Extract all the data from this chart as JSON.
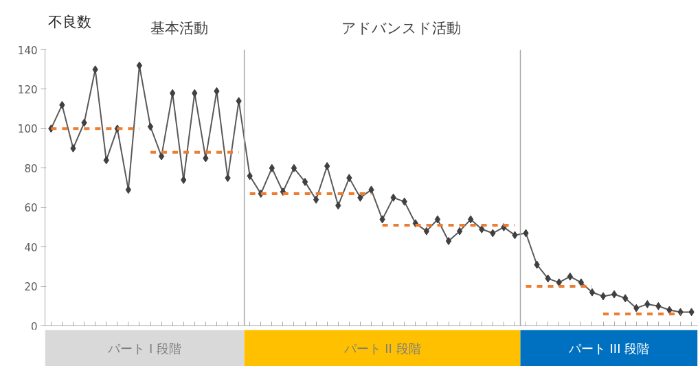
{
  "chart_data": {
    "type": "line",
    "ylabel": "不良数",
    "annotations": [
      "基本活動",
      "アドバンスド活動",
      "パート I 段階",
      "パート II 段階",
      "パート III 段階"
    ],
    "categories": [
      null,
      null,
      null,
      null,
      null,
      null,
      null,
      null,
      null,
      null,
      null,
      null,
      null,
      null,
      null,
      null,
      null,
      null,
      null,
      null,
      null,
      null,
      null,
      null,
      null,
      null,
      null,
      null,
      null,
      null,
      null,
      null,
      null,
      null,
      null,
      null,
      null,
      null,
      null,
      null,
      null,
      null,
      null,
      null,
      null,
      null,
      null,
      null,
      null,
      null,
      null,
      null,
      null,
      null,
      null,
      null,
      null,
      null,
      null
    ],
    "series": [
      {
        "color": "#595959",
        "marker": "diamond",
        "line_style": "solid",
        "values": [
          100,
          112,
          90,
          103,
          130,
          84,
          100,
          69,
          132,
          101,
          86,
          118,
          74,
          118,
          85,
          119,
          75,
          114,
          76,
          67,
          80,
          68,
          80,
          73,
          64,
          81,
          61,
          75,
          65,
          69,
          54,
          65,
          63,
          52,
          48,
          54,
          43,
          48,
          54,
          49,
          47,
          50,
          46,
          47,
          31,
          24,
          22,
          25,
          22,
          17,
          15,
          16,
          14,
          9,
          11,
          10,
          8,
          7,
          7
        ]
      },
      {
        "color": "#ed7d31",
        "marker": "none",
        "line_style": "dashed",
        "values": [
          100,
          100,
          100,
          100,
          100,
          100,
          100,
          100,
          100,
          null,
          null,
          null,
          null,
          null,
          null,
          null,
          null,
          null,
          null,
          null,
          null,
          null,
          null,
          null,
          null,
          null,
          null,
          null,
          null,
          null,
          null,
          null,
          null,
          null,
          null,
          null,
          null,
          null,
          null,
          null,
          null,
          null,
          null,
          null,
          null,
          null,
          null,
          null,
          null,
          null,
          null,
          null,
          null,
          null,
          null,
          null,
          null,
          null,
          null
        ]
      },
      {
        "color": "#ed7d31",
        "marker": "none",
        "line_style": "dashed",
        "values": [
          null,
          null,
          null,
          null,
          null,
          null,
          null,
          null,
          null,
          88,
          88,
          88,
          88,
          88,
          88,
          88,
          88,
          88,
          null,
          null,
          null,
          null,
          null,
          null,
          null,
          null,
          null,
          null,
          null,
          null,
          null,
          null,
          null,
          null,
          null,
          null,
          null,
          null,
          null,
          null,
          null,
          null,
          null,
          null,
          null,
          null,
          null,
          null,
          null,
          null,
          null,
          null,
          null,
          null,
          null,
          null,
          null,
          null,
          null
        ]
      },
      {
        "color": "#ed7d31",
        "marker": "none",
        "line_style": "dashed",
        "values": [
          null,
          null,
          null,
          null,
          null,
          null,
          null,
          null,
          null,
          null,
          null,
          null,
          null,
          null,
          null,
          null,
          null,
          null,
          67,
          67,
          67,
          67,
          67,
          67,
          67,
          67,
          67,
          67,
          67,
          67,
          null,
          null,
          null,
          null,
          null,
          null,
          null,
          null,
          null,
          null,
          null,
          null,
          null,
          null,
          null,
          null,
          null,
          null,
          null,
          null,
          null,
          null,
          null,
          null,
          null,
          null,
          null,
          null,
          null
        ]
      },
      {
        "color": "#ed7d31",
        "marker": "none",
        "line_style": "dashed",
        "values": [
          null,
          null,
          null,
          null,
          null,
          null,
          null,
          null,
          null,
          null,
          null,
          null,
          null,
          null,
          null,
          null,
          null,
          null,
          null,
          null,
          null,
          null,
          null,
          null,
          null,
          null,
          null,
          null,
          null,
          null,
          51,
          51,
          51,
          51,
          51,
          51,
          51,
          51,
          51,
          51,
          51,
          51,
          51,
          null,
          null,
          null,
          null,
          null,
          null,
          null,
          null,
          null,
          null,
          null,
          null,
          null,
          null,
          null,
          null
        ]
      },
      {
        "color": "#ed7d31",
        "marker": "none",
        "line_style": "dashed",
        "values": [
          null,
          null,
          null,
          null,
          null,
          null,
          null,
          null,
          null,
          null,
          null,
          null,
          null,
          null,
          null,
          null,
          null,
          null,
          null,
          null,
          null,
          null,
          null,
          null,
          null,
          null,
          null,
          null,
          null,
          null,
          null,
          null,
          null,
          null,
          null,
          null,
          null,
          null,
          null,
          null,
          null,
          null,
          null,
          20,
          20,
          20,
          20,
          20,
          20,
          20,
          null,
          null,
          null,
          null,
          null,
          null,
          null,
          null,
          null
        ]
      },
      {
        "color": "#ed7d31",
        "marker": "none",
        "line_style": "dashed",
        "values": [
          null,
          null,
          null,
          null,
          null,
          null,
          null,
          null,
          null,
          null,
          null,
          null,
          null,
          null,
          null,
          null,
          null,
          null,
          null,
          null,
          null,
          null,
          null,
          null,
          null,
          null,
          null,
          null,
          null,
          null,
          null,
          null,
          null,
          null,
          null,
          null,
          null,
          null,
          null,
          null,
          null,
          null,
          null,
          null,
          null,
          null,
          null,
          null,
          null,
          null,
          6,
          6,
          6,
          6,
          6,
          6,
          6,
          6,
          null
        ]
      }
    ],
    "ylim": [
      0,
      140
    ],
    "yticks": [
      0,
      20,
      40,
      60,
      80,
      100,
      120,
      140
    ],
    "tick_labels": "y",
    "grid": false
  }
}
